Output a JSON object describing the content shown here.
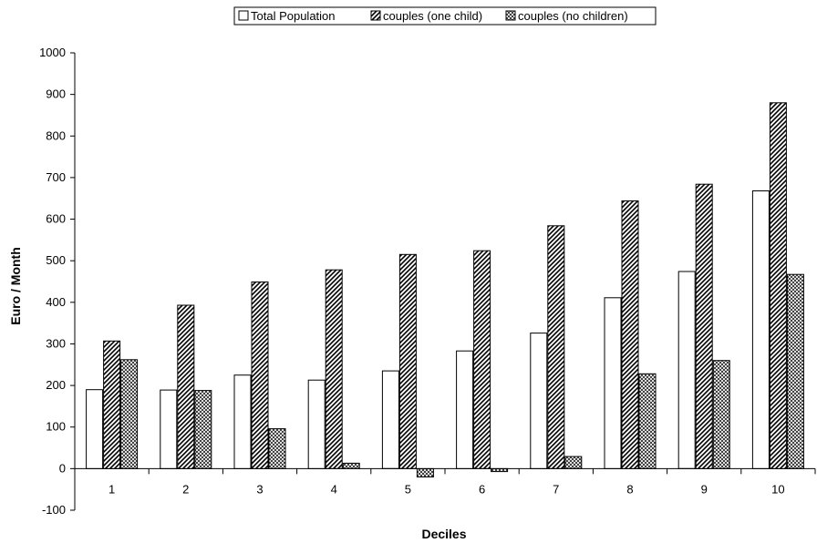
{
  "chart_data": {
    "type": "bar",
    "title": "",
    "xlabel": "Deciles",
    "ylabel": "Euro / Month",
    "categories": [
      "1",
      "2",
      "3",
      "4",
      "5",
      "6",
      "7",
      "8",
      "9",
      "10"
    ],
    "series": [
      {
        "name": "Total Population",
        "values": [
          190,
          189,
          225,
          213,
          235,
          283,
          326,
          411,
          474,
          668
        ]
      },
      {
        "name": "couples (one child)",
        "values": [
          307,
          393,
          449,
          478,
          515,
          524,
          584,
          644,
          684,
          880
        ]
      },
      {
        "name": "couples (no children)",
        "values": [
          262,
          188,
          96,
          13,
          -20,
          -7,
          29,
          228,
          260,
          467
        ]
      }
    ],
    "ylim": [
      -100,
      1000
    ],
    "yticks": [
      "-100",
      "0",
      "100",
      "200",
      "300",
      "400",
      "500",
      "600",
      "700",
      "800",
      "900",
      "1000"
    ],
    "grid": false,
    "legend": "top-right"
  }
}
